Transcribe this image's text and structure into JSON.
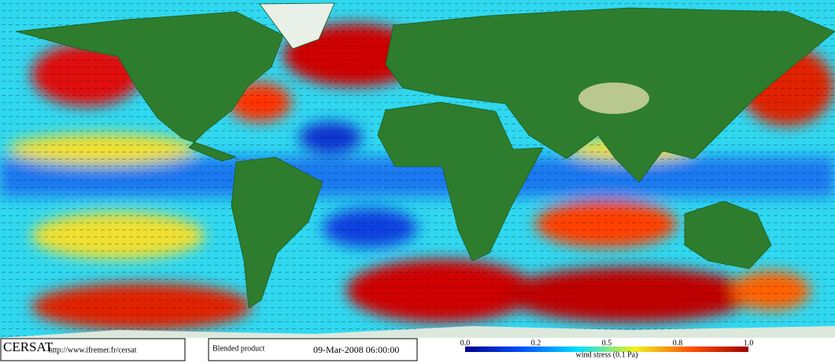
{
  "footer": {
    "logo": "CERSAT",
    "url": "http://www.ifremer.fr/cersat",
    "product": "Blended product",
    "date": "09-Mar-2008 06:00:00"
  },
  "colorbar": {
    "ticks": [
      "0.0",
      "0.2",
      "0.5",
      "0.8",
      "1.0"
    ],
    "label": "wind stress (0.1 Pa)"
  }
}
